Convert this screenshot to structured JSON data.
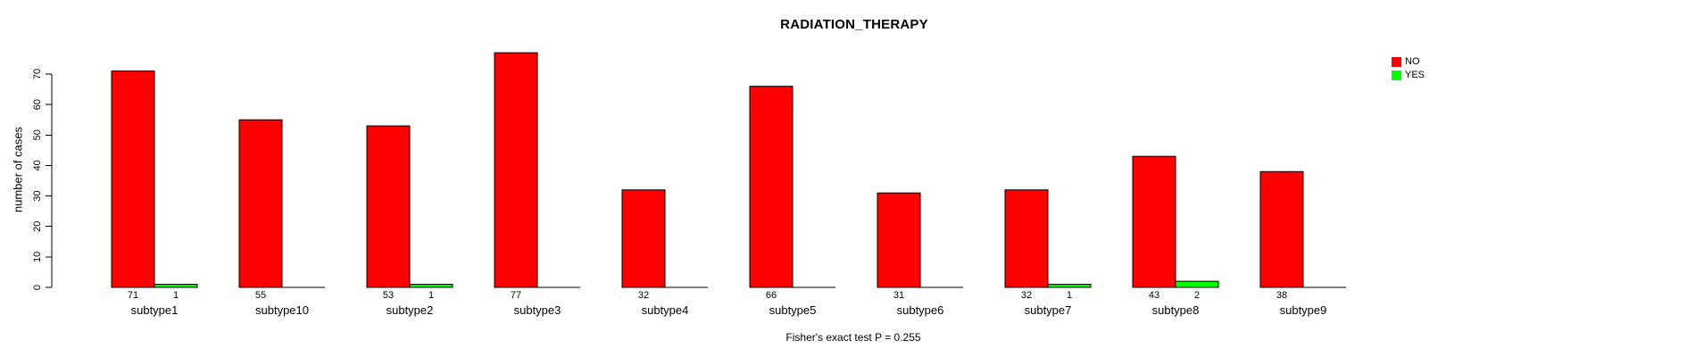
{
  "chart_data": {
    "type": "bar",
    "title": "RADIATION_THERAPY",
    "ylabel": "number of cases",
    "xlabel": "",
    "categories": [
      "subtype1",
      "subtype10",
      "subtype2",
      "subtype3",
      "subtype4",
      "subtype5",
      "subtype6",
      "subtype7",
      "subtype8",
      "subtype9"
    ],
    "series": [
      {
        "name": "NO",
        "color": "#ff0000",
        "values": [
          71,
          55,
          53,
          77,
          32,
          66,
          31,
          32,
          43,
          38
        ]
      },
      {
        "name": "YES",
        "color": "#00ff00",
        "values": [
          1,
          0,
          1,
          0,
          0,
          0,
          0,
          1,
          2,
          0
        ]
      }
    ],
    "yticks": [
      0,
      10,
      20,
      30,
      40,
      50,
      60,
      70
    ],
    "ylim": [
      0,
      70
    ],
    "grid": false,
    "legend_position": "top-right",
    "bar_value_labels": "shown under bars, zeros hidden",
    "annotation": "Fisher's exact test P = 0.255",
    "axis_color": "#000000",
    "background_color": "#ffffff"
  }
}
